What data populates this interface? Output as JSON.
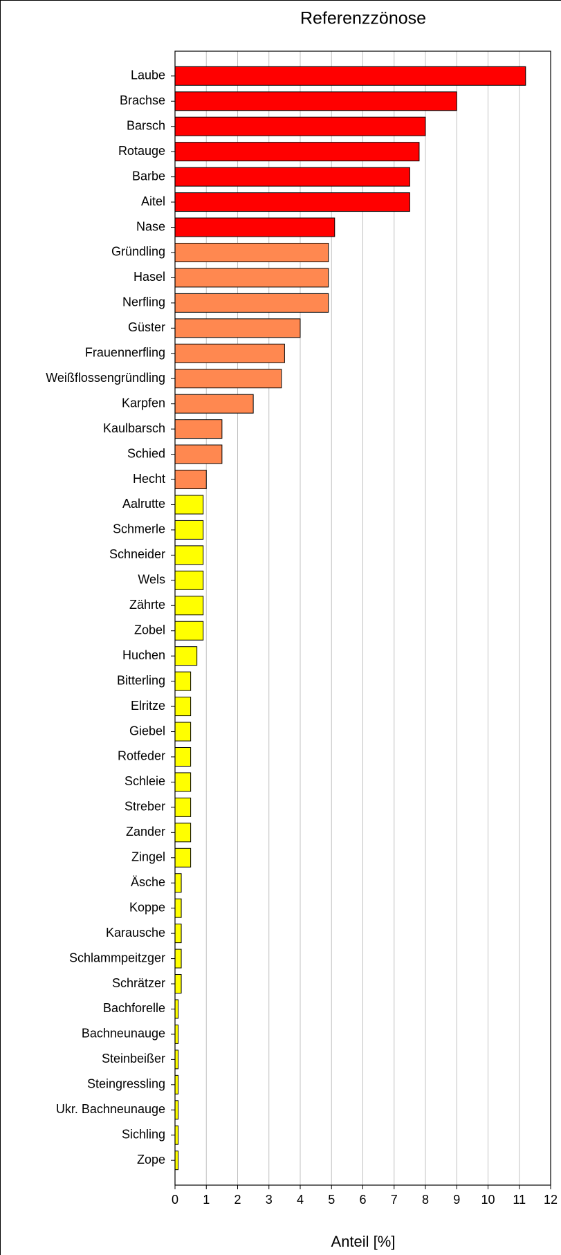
{
  "chart_data": {
    "type": "barh",
    "title": "Referenzzönose",
    "xlabel": "Anteil [%]",
    "categories": [
      "Laube",
      "Brachse",
      "Barsch",
      "Rotauge",
      "Barbe",
      "Aitel",
      "Nase",
      "Gründling",
      "Hasel",
      "Nerfling",
      "Güster",
      "Frauennerfling",
      "Weißflossengründling",
      "Karpfen",
      "Kaulbarsch",
      "Schied",
      "Hecht",
      "Aalrutte",
      "Schmerle",
      "Schneider",
      "Wels",
      "Zährte",
      "Zobel",
      "Huchen",
      "Bitterling",
      "Elritze",
      "Giebel",
      "Rotfeder",
      "Schleie",
      "Streber",
      "Zander",
      "Zingel",
      "Äsche",
      "Koppe",
      "Karausche",
      "Schlammpeitzger",
      "Schrätzer",
      "Bachforelle",
      "Bachneunauge",
      "Steinbeißer",
      "Steingressling",
      "Ukr. Bachneunauge",
      "Sichling",
      "Zope"
    ],
    "values": [
      11.2,
      9,
      8,
      7.8,
      7.5,
      7.5,
      5.1,
      4.9,
      4.9,
      4.9,
      4,
      3.5,
      3.4,
      2.5,
      1.5,
      1.5,
      1,
      0.9,
      0.9,
      0.9,
      0.9,
      0.9,
      0.9,
      0.7,
      0.5,
      0.5,
      0.5,
      0.5,
      0.5,
      0.5,
      0.5,
      0.5,
      0.2,
      0.2,
      0.2,
      0.2,
      0.2,
      0.1,
      0.1,
      0.1,
      0.1,
      0.1,
      0.1,
      0.1
    ],
    "colors": [
      "#ff0000",
      "#ff0000",
      "#ff0000",
      "#ff0000",
      "#ff0000",
      "#ff0000",
      "#ff0000",
      "#ff8850",
      "#ff8850",
      "#ff8850",
      "#ff8850",
      "#ff8850",
      "#ff8850",
      "#ff8850",
      "#ff8850",
      "#ff8850",
      "#ff8850",
      "#ffff00",
      "#ffff00",
      "#ffff00",
      "#ffff00",
      "#ffff00",
      "#ffff00",
      "#ffff00",
      "#ffff00",
      "#ffff00",
      "#ffff00",
      "#ffff00",
      "#ffff00",
      "#ffff00",
      "#ffff00",
      "#ffff00",
      "#ffff00",
      "#ffff00",
      "#ffff00",
      "#ffff00",
      "#ffff00",
      "#ffff00",
      "#ffff00",
      "#ffff00",
      "#ffff00",
      "#ffff00",
      "#ffff00",
      "#ffff00"
    ],
    "xlim": [
      0,
      12
    ],
    "xticks": [
      0,
      1,
      2,
      3,
      4,
      5,
      6,
      7,
      8,
      9,
      10,
      11,
      12
    ],
    "grid": true
  }
}
